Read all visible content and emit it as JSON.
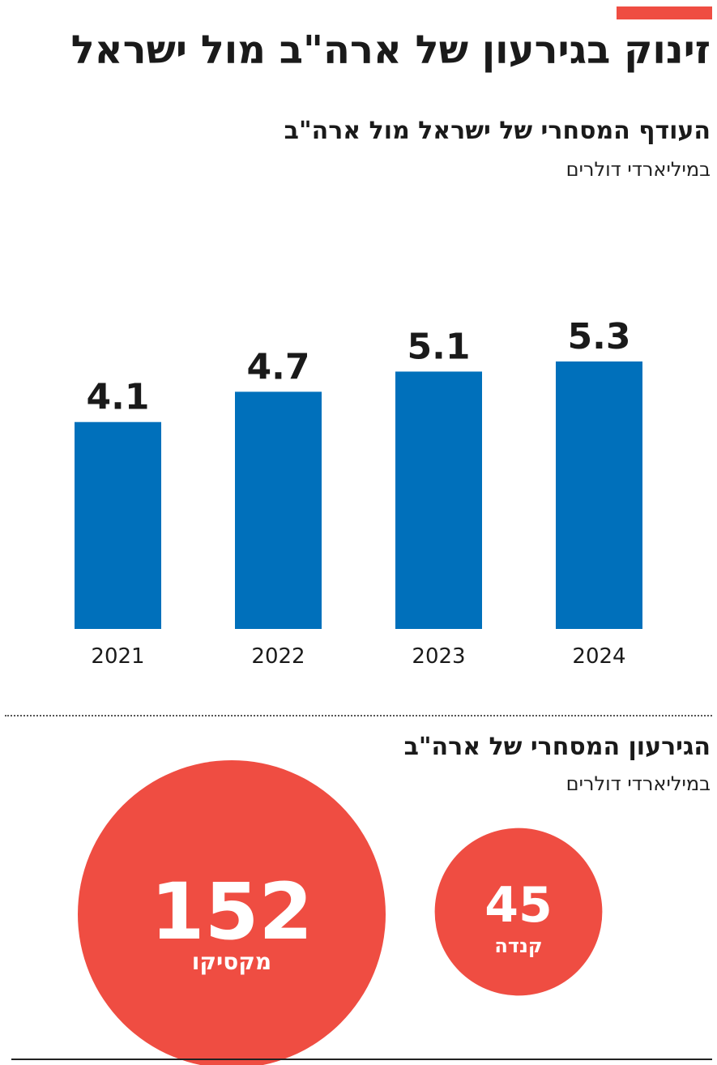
{
  "headline": "זינוק בגירעון של ארה\"ב מול ישראל",
  "accent_color": "#ef4d42",
  "chart_data": [
    {
      "type": "bar",
      "title": "העודף המסחרי של ישראל מול ארה\"ב",
      "subtitle": "במיליארדי דולרים",
      "categories": [
        "2021",
        "2022",
        "2023",
        "2024"
      ],
      "values": [
        4.1,
        4.7,
        5.1,
        5.3
      ],
      "data_labels": [
        "4.1",
        "4.7",
        "5.1",
        "5.3"
      ],
      "color": "#0070bb",
      "ylim": [
        0,
        5.5
      ],
      "grid": false
    },
    {
      "type": "bubble",
      "title": "הגירעון המסחרי של ארה\"ב",
      "subtitle": "במיליארדי דולרים",
      "categories": [
        "מקסיקו",
        "קנדה"
      ],
      "values": [
        152,
        45
      ],
      "value_labels": [
        "152",
        "45"
      ],
      "color": "#ef4d42"
    }
  ]
}
